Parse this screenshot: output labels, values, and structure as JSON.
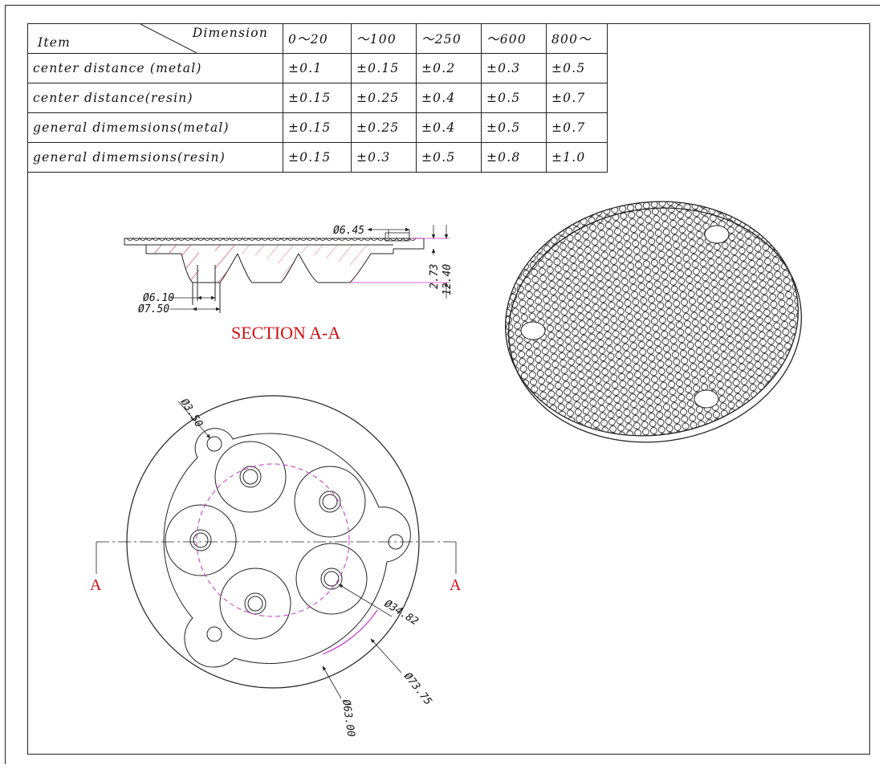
{
  "table": {
    "header": {
      "item_label": "Item",
      "dimension_label": "Dimension",
      "ranges": [
        "0～20",
        "～100",
        "～250",
        "～600",
        "800～"
      ]
    },
    "rows": [
      {
        "item": "center distance (metal)",
        "values": [
          "±0.1",
          "±0.15",
          "±0.2",
          "±0.3",
          "±0.5"
        ]
      },
      {
        "item": "center distance(resin)",
        "values": [
          "±0.15",
          "±0.25",
          "±0.4",
          "±0.5",
          "±0.7"
        ]
      },
      {
        "item": "general dimemsions(metal)",
        "values": [
          "±0.15",
          "±0.25",
          "±0.4",
          "±0.5",
          "±0.7"
        ]
      },
      {
        "item": "general dimemsions(resin)",
        "values": [
          "±0.15",
          "±0.3",
          "±0.5",
          "±0.8",
          "±1.0"
        ]
      }
    ]
  },
  "section": {
    "title": "SECTION A-A",
    "dims": {
      "d1": "Ø6.45",
      "d2": "Ø6.10",
      "d3": "Ø7.50",
      "h1": "2.73",
      "h2": "12.40"
    }
  },
  "plan": {
    "dims": {
      "hole": "Ø3.50",
      "pcd": "Ø34.82",
      "inner": "Ø63.00",
      "outer": "Ø73.75"
    },
    "cut_label_left": "A",
    "cut_label_right": "A"
  },
  "colors": {
    "line": "#222222",
    "magenta": "#cc33cc",
    "red": "#cc1111"
  }
}
